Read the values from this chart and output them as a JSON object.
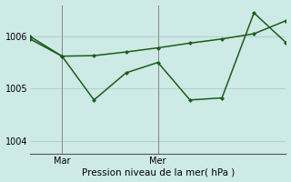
{
  "title": "Pression niveau de la mer( hPa )",
  "background_color": "#ceeae6",
  "grid_color": "#aed4ce",
  "line_color": "#1a5c1a",
  "xlim": [
    0,
    8
  ],
  "ylim": [
    1003.75,
    1006.6
  ],
  "yticks": [
    1004,
    1005,
    1006
  ],
  "xtick_positions": [
    1,
    4
  ],
  "xtick_labels": [
    "Mar",
    "Mer"
  ],
  "vline_color": "#888888",
  "series1_x": [
    0,
    1,
    2,
    3,
    4,
    5,
    6,
    7,
    8
  ],
  "series1_y": [
    1005.95,
    1005.62,
    1005.63,
    1005.7,
    1005.78,
    1005.87,
    1005.95,
    1006.05,
    1006.3
  ],
  "series2_x": [
    0,
    1,
    2,
    3,
    4,
    5,
    6,
    7,
    8
  ],
  "series2_y": [
    1006.0,
    1005.62,
    1004.78,
    1005.3,
    1005.5,
    1004.78,
    1004.82,
    1006.45,
    1005.88
  ]
}
